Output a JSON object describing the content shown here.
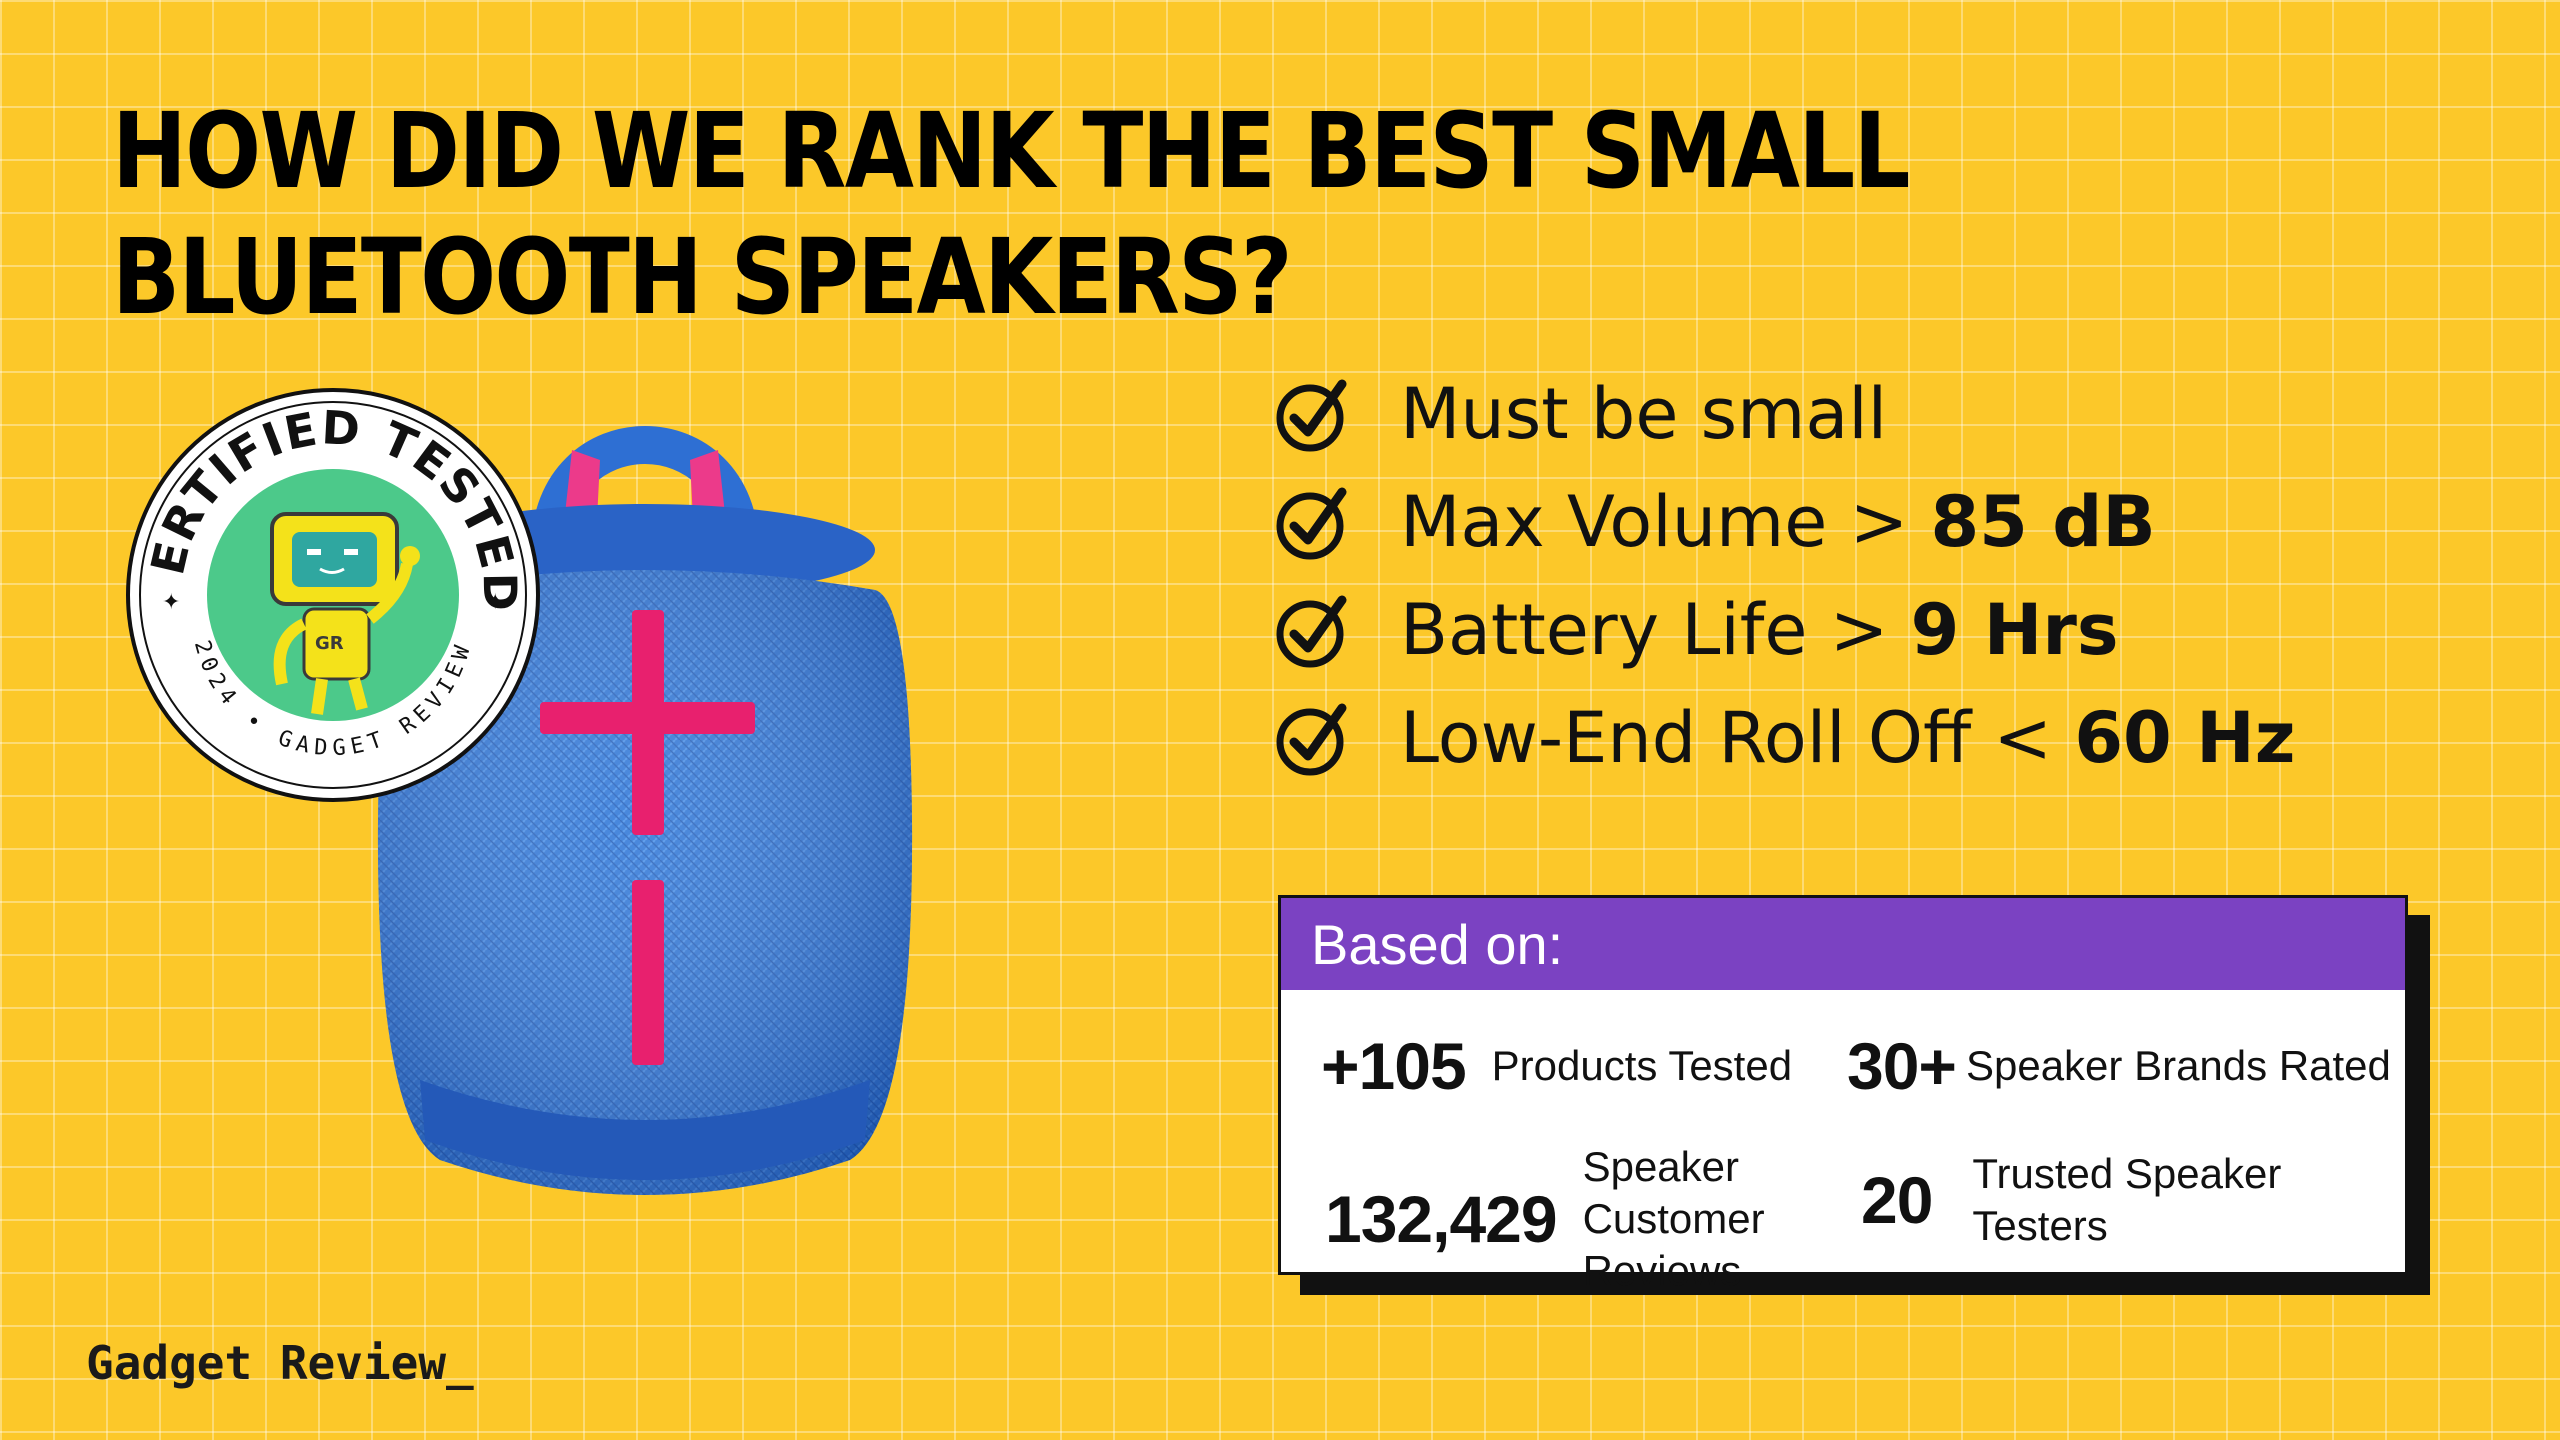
{
  "title": "HOW DID WE RANK THE BEST SMALL BLUETOOTH SPEAKERS?",
  "criteria": [
    {
      "text": "Must be small",
      "value": ""
    },
    {
      "text": "Max Volume > ",
      "value": "85 dB"
    },
    {
      "text": "Battery Life > ",
      "value": "9 Hrs"
    },
    {
      "text": "Low-End Roll Off < ",
      "value": "60 Hz"
    }
  ],
  "based_on": {
    "heading": "Based on:",
    "stats": [
      {
        "num": "+105",
        "label": "Products Tested"
      },
      {
        "num": "30+",
        "label": "Speaker Brands Rated"
      },
      {
        "num": "132,429",
        "label": "Speaker Customer Reviews"
      },
      {
        "num": "20",
        "label": "Trusted Speaker Testers"
      }
    ]
  },
  "badge": {
    "top_text": "CERTIFIED TESTED",
    "bottom_text": "2024 • GADGET REVIEW",
    "robot_text": "GR"
  },
  "brand": "Gadget Review_",
  "colors": {
    "background": "#fcc829",
    "purple": "#7b42c2",
    "speaker_blue": "#2b6fd6",
    "accent_pink": "#e8206e"
  }
}
